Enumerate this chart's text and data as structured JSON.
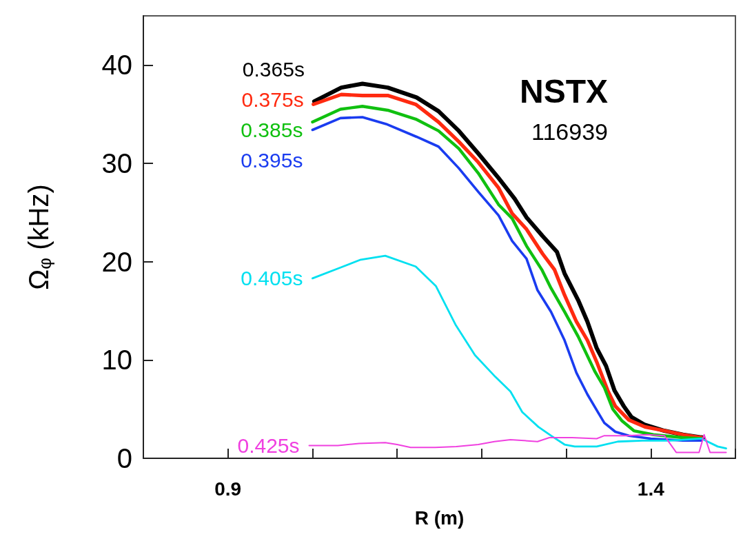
{
  "chart_data": {
    "type": "line",
    "title": "NSTX",
    "subtitle": "116939",
    "xlabel": "R (m)",
    "ylabel": "Ω$_{φ}$ (kHz)",
    "xlim": [
      0.8,
      1.5
    ],
    "xticks": [
      {
        "value": 0.8,
        "label": null
      },
      0.9,
      {
        "value": 1.0,
        "label": null
      },
      {
        "value": 1.1,
        "label": null
      },
      {
        "value": 1.2,
        "label": null
      },
      {
        "value": 1.3,
        "label": null
      },
      1.4,
      {
        "value": 1.5,
        "label": null
      }
    ],
    "ylim": [
      0,
      45
    ],
    "yticks": [
      0,
      10,
      20,
      30,
      40
    ],
    "grid": false,
    "legend": false,
    "marker": "none",
    "line_style": "solid",
    "series": [
      {
        "name": "0.365s",
        "color": "#000000",
        "x": [
          1.002,
          1.034,
          1.059,
          1.089,
          1.123,
          1.149,
          1.173,
          1.196,
          1.22,
          1.239,
          1.253,
          1.272,
          1.289,
          1.298,
          1.314,
          1.325,
          1.336,
          1.347,
          1.357,
          1.368,
          1.377,
          1.393,
          1.416,
          1.438,
          1.462
        ],
        "values": [
          36.3,
          37.7,
          38.1,
          37.7,
          36.7,
          35.3,
          33.3,
          31.0,
          28.5,
          26.4,
          24.5,
          22.6,
          21.0,
          18.8,
          16.1,
          13.9,
          11.2,
          9.4,
          6.9,
          5.3,
          4.2,
          3.4,
          2.8,
          2.4,
          2.1
        ]
      },
      {
        "name": "0.375s",
        "color": "#ff2a10",
        "x": [
          1.001,
          1.034,
          1.059,
          1.089,
          1.122,
          1.149,
          1.173,
          1.196,
          1.22,
          1.236,
          1.253,
          1.272,
          1.286,
          1.298,
          1.312,
          1.325,
          1.336,
          1.349,
          1.358,
          1.374,
          1.393,
          1.416,
          1.438,
          1.46
        ],
        "values": [
          36.0,
          37.0,
          36.9,
          36.9,
          36.0,
          34.2,
          32.2,
          30.1,
          27.5,
          24.9,
          23.3,
          20.8,
          19.2,
          16.6,
          13.9,
          12.0,
          9.8,
          6.9,
          5.3,
          3.9,
          3.2,
          2.8,
          2.4,
          2.1
        ]
      },
      {
        "name": "0.385s",
        "color": "#10c010",
        "x": [
          1.0,
          1.033,
          1.059,
          1.089,
          1.122,
          1.149,
          1.173,
          1.196,
          1.22,
          1.236,
          1.253,
          1.271,
          1.282,
          1.298,
          1.314,
          1.334,
          1.345,
          1.355,
          1.366,
          1.38,
          1.403,
          1.438,
          1.46
        ],
        "values": [
          34.2,
          35.5,
          35.8,
          35.4,
          34.5,
          33.3,
          31.5,
          29.0,
          25.8,
          24.4,
          21.6,
          19.2,
          17.3,
          14.9,
          12.4,
          8.8,
          7.2,
          5.0,
          3.8,
          2.8,
          2.4,
          2.1,
          2.0
        ]
      },
      {
        "name": "0.395s",
        "color": "#1a3cf0",
        "x": [
          1.0,
          1.033,
          1.059,
          1.087,
          1.123,
          1.149,
          1.173,
          1.196,
          1.22,
          1.236,
          1.253,
          1.266,
          1.282,
          1.298,
          1.312,
          1.325,
          1.336,
          1.345,
          1.358,
          1.374,
          1.4,
          1.438,
          1.46
        ],
        "values": [
          33.4,
          34.6,
          34.7,
          34.0,
          32.7,
          31.7,
          29.5,
          27.1,
          24.7,
          22.1,
          20.3,
          17.1,
          14.9,
          12.0,
          8.7,
          6.5,
          4.9,
          3.6,
          2.7,
          2.3,
          2.0,
          1.8,
          1.8
        ]
      },
      {
        "name": "0.405s",
        "color": "#00e0f0",
        "x": [
          1.0,
          1.033,
          1.057,
          1.086,
          1.122,
          1.146,
          1.169,
          1.192,
          1.216,
          1.234,
          1.248,
          1.267,
          1.282,
          1.298,
          1.31,
          1.336,
          1.361,
          1.39,
          1.422,
          1.46,
          1.479,
          1.489
        ],
        "values": [
          18.3,
          19.4,
          20.2,
          20.6,
          19.5,
          17.5,
          13.6,
          10.5,
          8.3,
          6.8,
          4.7,
          3.2,
          2.3,
          1.4,
          1.2,
          1.2,
          1.7,
          1.8,
          1.8,
          2.0,
          1.2,
          1.0
        ]
      },
      {
        "name": "0.425s",
        "color": "#f040e0",
        "x": [
          0.996,
          1.03,
          1.055,
          1.086,
          1.1,
          1.116,
          1.145,
          1.17,
          1.196,
          1.215,
          1.234,
          1.25,
          1.266,
          1.28,
          1.307,
          1.336,
          1.345,
          1.371,
          1.396,
          1.416,
          1.43,
          1.457,
          1.463,
          1.47,
          1.489
        ],
        "values": [
          1.3,
          1.3,
          1.5,
          1.6,
          1.4,
          1.1,
          1.1,
          1.2,
          1.4,
          1.7,
          1.9,
          1.8,
          1.7,
          2.1,
          2.1,
          2.0,
          2.3,
          2.3,
          2.4,
          2.3,
          0.6,
          0.6,
          2.4,
          0.6,
          0.6
        ]
      }
    ]
  }
}
